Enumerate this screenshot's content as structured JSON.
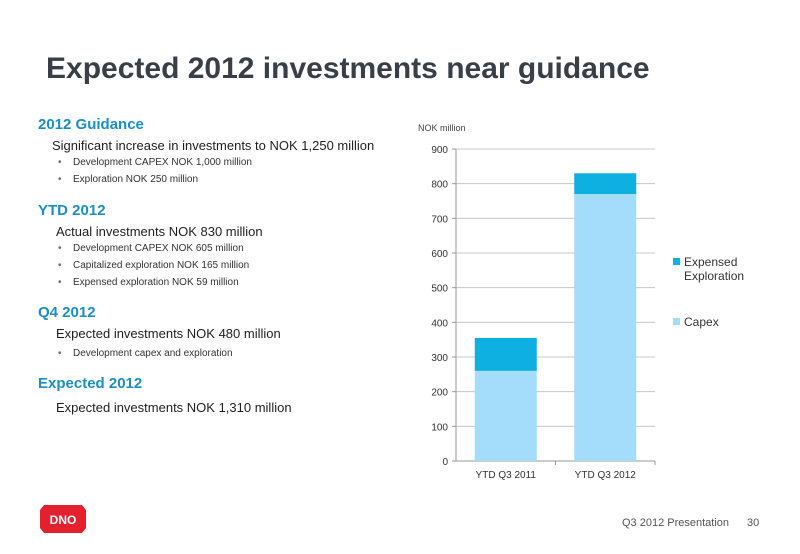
{
  "title": "Expected 2012 investments near guidance",
  "sections": [
    {
      "heading": "2012 Guidance",
      "sub": "Significant increase in investments to NOK 1,250 million",
      "bullets": [
        "Development CAPEX NOK 1,000 million",
        "Exploration NOK 250 million"
      ]
    },
    {
      "heading": "YTD 2012",
      "sub": "Actual investments NOK 830 million",
      "bullets": [
        "Development CAPEX NOK 605 million",
        "Capitalized exploration NOK 165 million",
        "Expensed exploration NOK 59 million"
      ]
    },
    {
      "heading": "Q4 2012",
      "sub": "Expected investments NOK 480 million",
      "bullets": [
        "Development capex and exploration"
      ]
    },
    {
      "heading": "Expected 2012",
      "sub": "Expected investments NOK 1,310 million",
      "bullets": []
    }
  ],
  "chart_data": {
    "type": "bar",
    "stacked": true,
    "categories": [
      "YTD Q3 2011",
      "YTD Q3 2012"
    ],
    "series": [
      {
        "name": "Capex",
        "values": [
          260,
          770
        ],
        "color": "#a4ddfb"
      },
      {
        "name": "Expensed Exploration",
        "values": [
          95,
          60
        ],
        "color": "#0db0e0"
      }
    ],
    "ylabel": "NOK million",
    "ylim": [
      0,
      900
    ],
    "yticks": [
      "0",
      "100",
      "200",
      "300",
      "400",
      "500",
      "600",
      "700",
      "800",
      "900"
    ],
    "grid": true,
    "legend": "right"
  },
  "logo": {
    "text": "DNO",
    "color": "#e3202e"
  },
  "footer": {
    "label": "Q3 2012 Presentation",
    "page": "30"
  }
}
